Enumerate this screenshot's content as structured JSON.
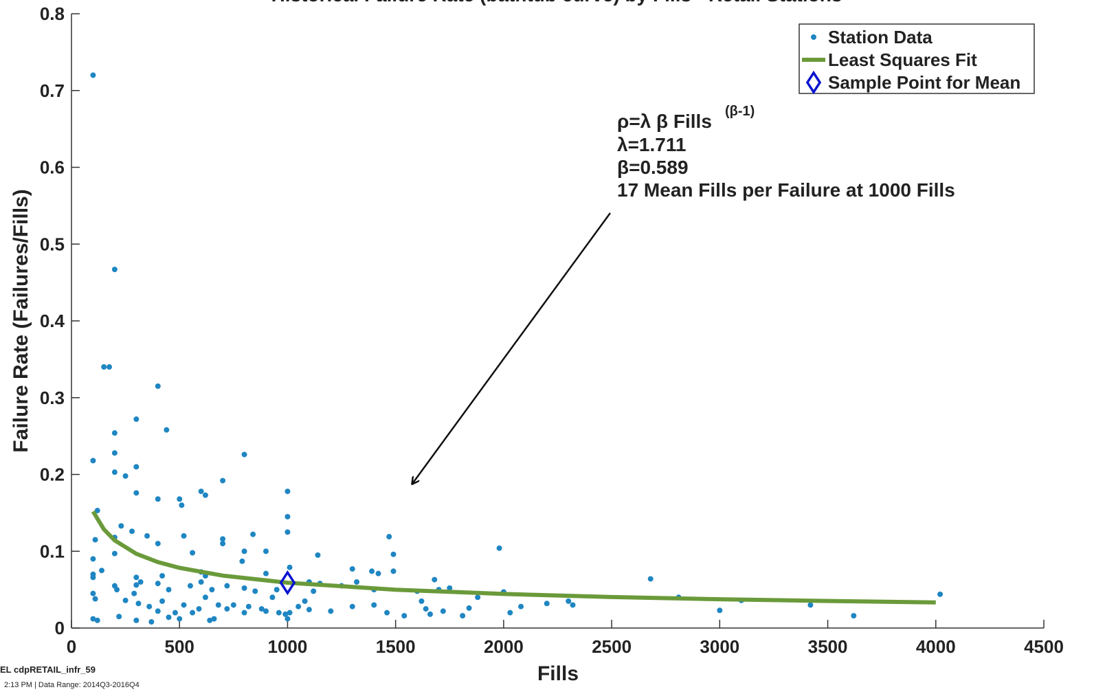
{
  "chart_data": {
    "type": "scatter",
    "title": "Historical Failure Rate (bathtub curve) by Fills - Retail Stations",
    "xlabel": "Fills",
    "ylabel": "Failure Rate (Failures/Fills)",
    "xlim": [
      0,
      4500
    ],
    "ylim": [
      0,
      0.8
    ],
    "xticks": [
      0,
      500,
      1000,
      1500,
      2000,
      2500,
      3000,
      3500,
      4000,
      4500
    ],
    "yticks": [
      0,
      0.1,
      0.2,
      0.3,
      0.4,
      0.5,
      0.6,
      0.7,
      0.8
    ],
    "grid": false,
    "legend": "upper right",
    "series": [
      {
        "name": "Station Data",
        "style": "dots",
        "color": "#1f86c2",
        "x": [
          100,
          200,
          150,
          175,
          400,
          300,
          200,
          440,
          100,
          200,
          300,
          200,
          250,
          800,
          700,
          600,
          620,
          300,
          400,
          500,
          510,
          1000,
          1000,
          120,
          1000,
          230,
          280,
          350,
          400,
          520,
          700,
          700,
          840,
          1470,
          1980,
          110,
          200,
          100,
          200,
          560,
          800,
          900,
          790,
          1140,
          1490,
          140,
          100,
          100,
          300,
          420,
          600,
          620,
          900,
          1010,
          1300,
          1390,
          1420,
          1490,
          1680,
          2680,
          200,
          210,
          300,
          320,
          400,
          450,
          550,
          600,
          650,
          720,
          800,
          850,
          950,
          1100,
          1120,
          1150,
          1250,
          1320,
          1400,
          1600,
          1700,
          1750,
          1880,
          2000,
          100,
          110,
          250,
          290,
          310,
          360,
          400,
          420,
          480,
          520,
          590,
          620,
          680,
          720,
          750,
          820,
          880,
          930,
          960,
          990,
          1050,
          1080,
          1100,
          1200,
          1300,
          1400,
          1460,
          1540,
          1620,
          1640,
          1660,
          1720,
          1810,
          1840,
          2030,
          2080,
          2200,
          2300,
          2320,
          2810,
          3000,
          3100,
          3420,
          3620,
          4020,
          100,
          120,
          220,
          300,
          370,
          450,
          500,
          560,
          640,
          660,
          800,
          900,
          1000,
          1010
        ],
        "values": [
          0.72,
          0.467,
          0.34,
          0.34,
          0.315,
          0.272,
          0.254,
          0.258,
          0.218,
          0.228,
          0.21,
          0.203,
          0.198,
          0.226,
          0.192,
          0.178,
          0.173,
          0.176,
          0.168,
          0.168,
          0.16,
          0.178,
          0.145,
          0.153,
          0.125,
          0.133,
          0.126,
          0.12,
          0.11,
          0.12,
          0.116,
          0.11,
          0.122,
          0.119,
          0.104,
          0.115,
          0.118,
          0.09,
          0.097,
          0.098,
          0.1,
          0.1,
          0.087,
          0.095,
          0.096,
          0.075,
          0.07,
          0.066,
          0.066,
          0.068,
          0.073,
          0.068,
          0.071,
          0.079,
          0.077,
          0.074,
          0.071,
          0.074,
          0.063,
          0.064,
          0.055,
          0.05,
          0.056,
          0.06,
          0.058,
          0.05,
          0.055,
          0.06,
          0.05,
          0.055,
          0.052,
          0.048,
          0.05,
          0.06,
          0.048,
          0.058,
          0.055,
          0.06,
          0.05,
          0.048,
          0.05,
          0.052,
          0.04,
          0.047,
          0.045,
          0.038,
          0.036,
          0.045,
          0.032,
          0.028,
          0.022,
          0.035,
          0.02,
          0.03,
          0.025,
          0.04,
          0.03,
          0.025,
          0.03,
          0.028,
          0.025,
          0.04,
          0.02,
          0.018,
          0.028,
          0.035,
          0.024,
          0.022,
          0.028,
          0.03,
          0.02,
          0.016,
          0.035,
          0.025,
          0.018,
          0.022,
          0.016,
          0.026,
          0.02,
          0.028,
          0.032,
          0.035,
          0.03,
          0.04,
          0.023,
          0.036,
          0.03,
          0.016,
          0.044,
          0.012,
          0.01,
          0.015,
          0.01,
          0.008,
          0.014,
          0.012,
          0.02,
          0.01,
          0.012,
          0.02,
          0.022,
          0.012,
          0.02
        ]
      },
      {
        "name": "Least Squares Fit",
        "style": "line",
        "color": "#6a9a3a",
        "x": [
          100,
          150,
          200,
          300,
          400,
          500,
          700,
          1000,
          1500,
          2000,
          2500,
          3000,
          3500,
          4000
        ],
        "values": [
          0.1518,
          0.1286,
          0.1142,
          0.0967,
          0.0859,
          0.0784,
          0.0683,
          0.059,
          0.0499,
          0.0444,
          0.0404,
          0.0375,
          0.0352,
          0.0333
        ]
      },
      {
        "name": "Sample Point for Mean",
        "style": "diamond",
        "color": "#0a14d0",
        "x": [
          1000
        ],
        "values": [
          0.059
        ]
      }
    ],
    "annotation": {
      "formula": "ρ=λ β Fills",
      "exponent": "(β-1)",
      "lines": [
        "λ=1.711",
        "β=0.589",
        "17 Mean Fills per Failure at 1000 Fills"
      ]
    },
    "footer": [
      "EL cdpRETAIL_infr_59",
      "2:13 PM | Data Range: 2014Q3-2016Q4"
    ]
  }
}
